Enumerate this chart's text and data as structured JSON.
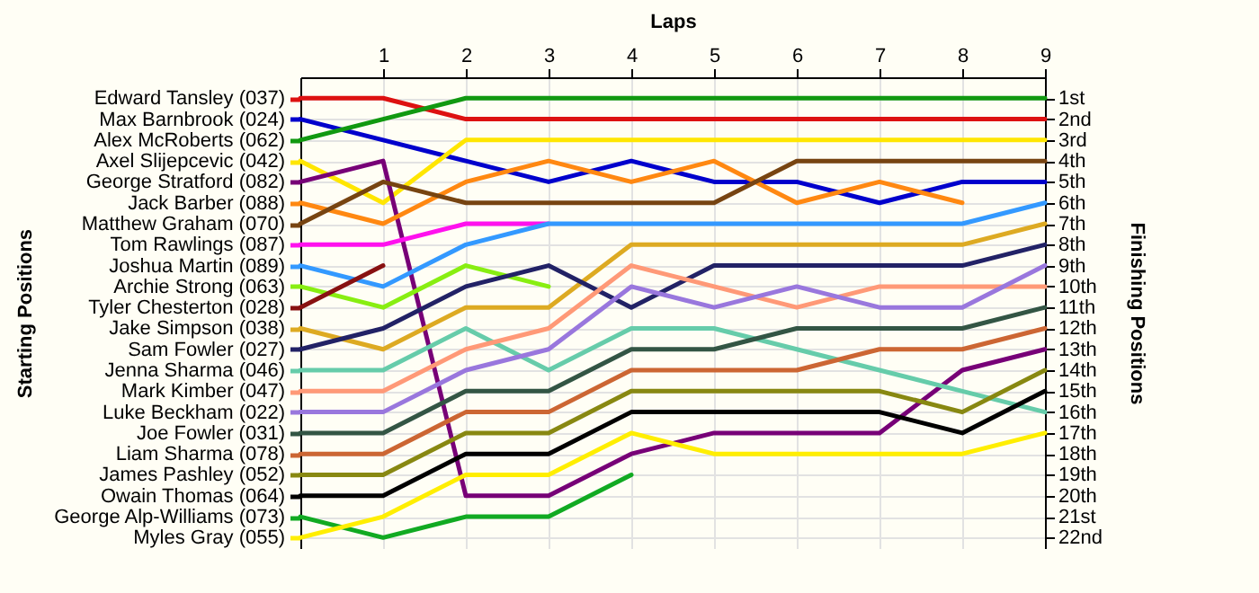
{
  "chart_data": {
    "type": "line",
    "xlabel": "Laps",
    "legend_title": "Starting Positions",
    "legend": "left",
    "y2label": "Finishing Positions",
    "x": [
      0,
      1,
      2,
      3,
      4,
      5,
      6,
      7,
      8,
      9
    ],
    "xlim": [
      0,
      9
    ],
    "xticks": [
      1,
      2,
      3,
      4,
      5,
      6,
      7,
      8,
      9
    ],
    "y2lim": [
      22.5,
      0
    ],
    "y2ticks": [
      {
        "value": 1,
        "label": "1st"
      },
      {
        "value": 2,
        "label": "2nd"
      },
      {
        "value": 3,
        "label": "3rd"
      },
      {
        "value": 4,
        "label": "4th"
      },
      {
        "value": 5,
        "label": "5th"
      },
      {
        "value": 6,
        "label": "6th"
      },
      {
        "value": 7,
        "label": "7th"
      },
      {
        "value": 8,
        "label": "8th"
      },
      {
        "value": 9,
        "label": "9th"
      },
      {
        "value": 10,
        "label": "10th"
      },
      {
        "value": 11,
        "label": "11th"
      },
      {
        "value": 12,
        "label": "12th"
      },
      {
        "value": 13,
        "label": "13th"
      },
      {
        "value": 14,
        "label": "14th"
      },
      {
        "value": 15,
        "label": "15th"
      },
      {
        "value": 16,
        "label": "16th"
      },
      {
        "value": 17,
        "label": "17th"
      },
      {
        "value": 18,
        "label": "18th"
      },
      {
        "value": 19,
        "label": "19th"
      },
      {
        "value": 20,
        "label": "20th"
      },
      {
        "value": 21,
        "label": "21st"
      },
      {
        "value": 22,
        "label": "22nd"
      }
    ],
    "grid": true,
    "series": [
      {
        "name": "Edward Tansley (037)",
        "axis": "y2",
        "color": "#dd1111",
        "values": [
          1,
          1,
          2,
          2,
          2,
          2,
          2,
          2,
          2,
          2
        ]
      },
      {
        "name": "Max Barnbrook (024)",
        "axis": "y2",
        "color": "#0000cc",
        "values": [
          2,
          3,
          4,
          5,
          4,
          5,
          5,
          6,
          5,
          5
        ]
      },
      {
        "name": "Alex McRoberts (062)",
        "axis": "y2",
        "color": "#119911",
        "values": [
          3,
          2,
          1,
          1,
          1,
          1,
          1,
          1,
          1,
          1
        ]
      },
      {
        "name": "Axel Slijepcevic (042)",
        "axis": "y2",
        "color": "#ffe600",
        "values": [
          4,
          6,
          3,
          3,
          3,
          3,
          3,
          3,
          3,
          3
        ]
      },
      {
        "name": "George Stratford (082)",
        "axis": "y2",
        "color": "#770077",
        "values": [
          5,
          4,
          20,
          20,
          18,
          17,
          17,
          17,
          14,
          13
        ]
      },
      {
        "name": "Jack Barber (088)",
        "axis": "y2",
        "color": "#ff8811",
        "values": [
          6,
          7,
          5,
          4,
          5,
          4,
          6,
          5,
          6,
          null
        ]
      },
      {
        "name": "Matthew Graham (070)",
        "axis": "y2",
        "color": "#774411",
        "values": [
          7,
          5,
          6,
          6,
          6,
          6,
          4,
          4,
          4,
          4
        ]
      },
      {
        "name": "Tom Rawlings (087)",
        "axis": "y2",
        "color": "#ff11ee",
        "values": [
          8,
          8,
          7,
          7,
          null,
          null,
          null,
          null,
          null,
          null
        ]
      },
      {
        "name": "Joshua Martin (089)",
        "axis": "y2",
        "color": "#3399ff",
        "values": [
          9,
          10,
          8,
          7,
          7,
          7,
          7,
          7,
          7,
          6
        ]
      },
      {
        "name": "Archie Strong (063)",
        "axis": "y2",
        "color": "#88ee11",
        "values": [
          10,
          11,
          9,
          10,
          null,
          null,
          null,
          null,
          null,
          null
        ]
      },
      {
        "name": "Tyler Chesterton (028)",
        "axis": "y2",
        "color": "#881111",
        "values": [
          11,
          9,
          null,
          null,
          null,
          null,
          null,
          null,
          null,
          null
        ]
      },
      {
        "name": "Jake Simpson (038)",
        "axis": "y2",
        "color": "#ddaa22",
        "values": [
          12,
          13,
          11,
          11,
          8,
          8,
          8,
          8,
          8,
          7
        ]
      },
      {
        "name": "Sam Fowler (027)",
        "axis": "y2",
        "color": "#222266",
        "values": [
          13,
          12,
          10,
          9,
          11,
          9,
          9,
          9,
          9,
          8
        ]
      },
      {
        "name": "Jenna Sharma (046)",
        "axis": "y2",
        "color": "#66ccaa",
        "values": [
          14,
          14,
          12,
          14,
          12,
          12,
          13,
          14,
          15,
          16
        ]
      },
      {
        "name": "Mark Kimber (047)",
        "axis": "y2",
        "color": "#ff9977",
        "values": [
          15,
          15,
          13,
          12,
          9,
          10,
          11,
          10,
          10,
          10
        ]
      },
      {
        "name": "Luke Beckham (022)",
        "axis": "y2",
        "color": "#9977dd",
        "values": [
          16,
          16,
          14,
          13,
          10,
          11,
          10,
          11,
          11,
          9
        ]
      },
      {
        "name": "Joe Fowler (031)",
        "axis": "y2",
        "color": "#335544",
        "values": [
          17,
          17,
          15,
          15,
          13,
          13,
          12,
          12,
          12,
          11
        ]
      },
      {
        "name": "Liam Sharma (078)",
        "axis": "y2",
        "color": "#cc6633",
        "values": [
          18,
          18,
          16,
          16,
          14,
          14,
          14,
          13,
          13,
          12
        ]
      },
      {
        "name": "James Pashley (052)",
        "axis": "y2",
        "color": "#888811",
        "values": [
          19,
          19,
          17,
          17,
          15,
          15,
          15,
          15,
          16,
          14
        ]
      },
      {
        "name": "Owain Thomas (064)",
        "axis": "y2",
        "color": "#000000",
        "values": [
          20,
          20,
          18,
          18,
          16,
          16,
          16,
          16,
          17,
          15
        ]
      },
      {
        "name": "George Alp-Williams (073)",
        "axis": "y2",
        "color": "#11aa22",
        "values": [
          21,
          22,
          21,
          21,
          19,
          null,
          null,
          null,
          null,
          null
        ]
      },
      {
        "name": "Myles Gray (055)",
        "axis": "y2",
        "color": "#ffee00",
        "values": [
          22,
          21,
          19,
          19,
          17,
          18,
          18,
          18,
          18,
          17
        ]
      }
    ]
  }
}
